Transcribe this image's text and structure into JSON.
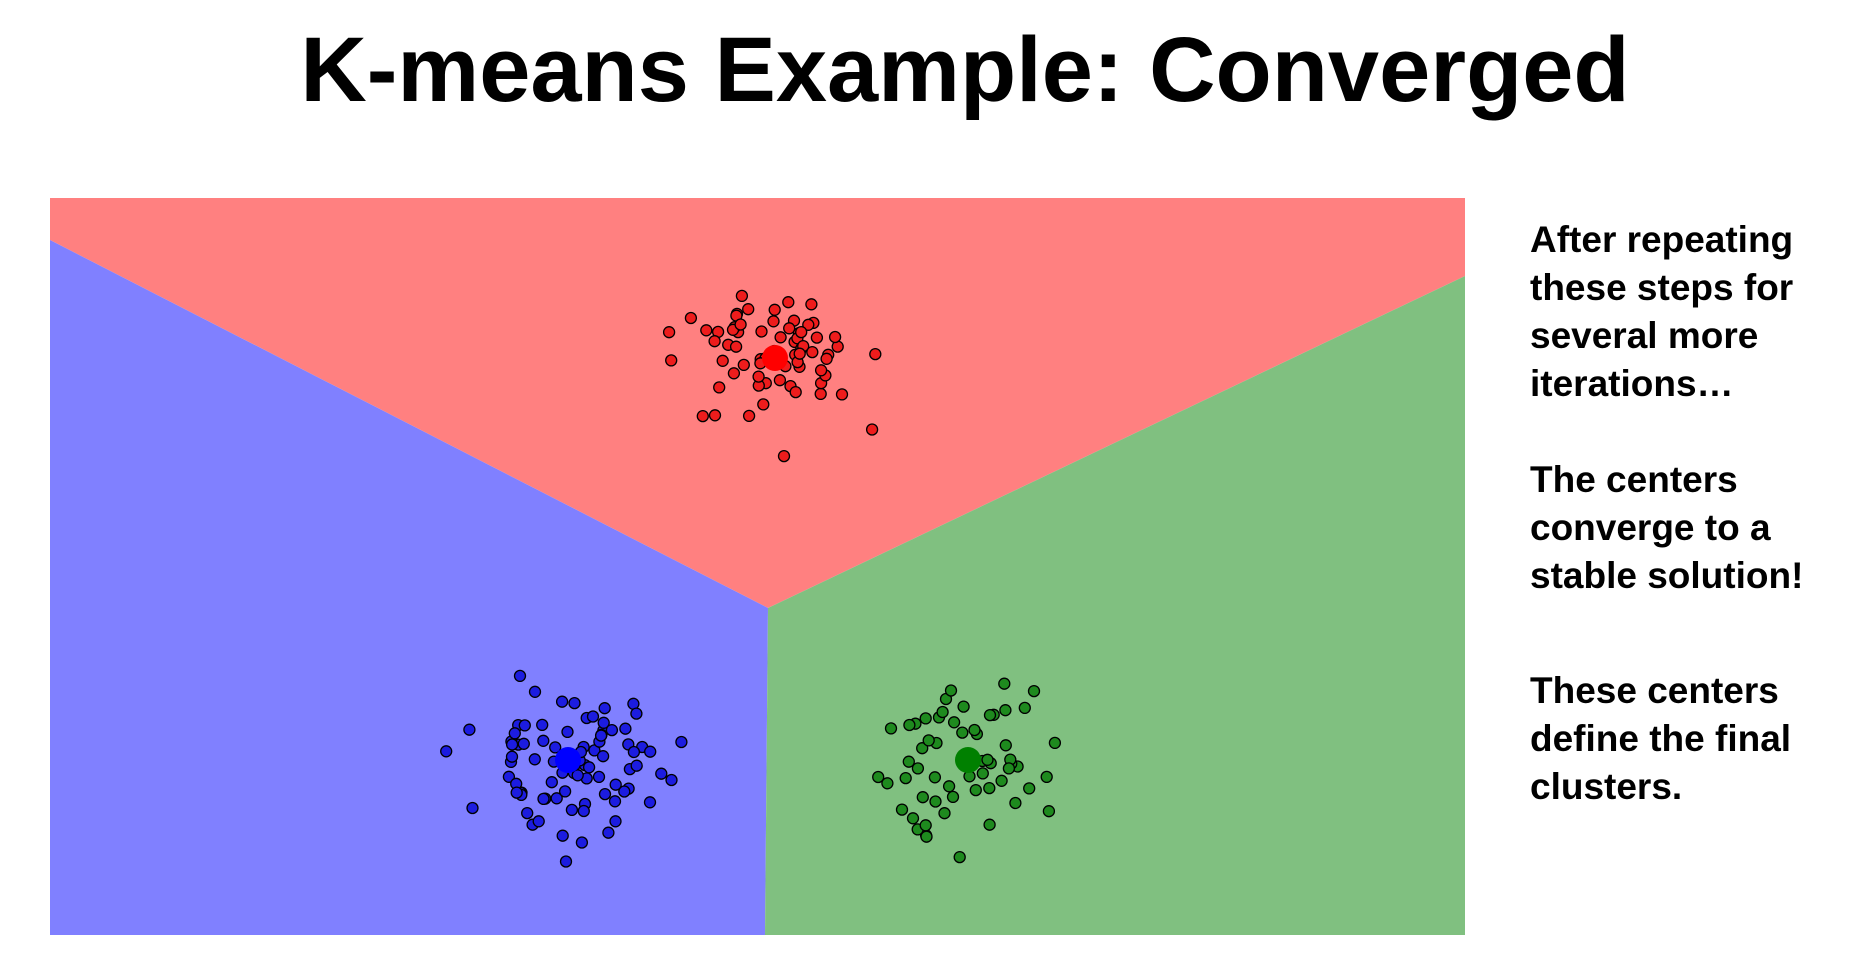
{
  "slide": {
    "title": "K-means Example: Converged"
  },
  "diagram": {
    "regions": [
      {
        "name": "red-region",
        "color": "#ff8080"
      },
      {
        "name": "blue-region",
        "color": "#8080ff"
      },
      {
        "name": "green-region",
        "color": "#80c080"
      }
    ],
    "clusters": [
      {
        "name": "red",
        "point_color": "#ee1c1c",
        "center_color": "#ff0000"
      },
      {
        "name": "blue",
        "point_color": "#1c1ce0",
        "center_color": "#0000ff"
      },
      {
        "name": "green",
        "point_color": "#1e8a1e",
        "center_color": "#008000"
      }
    ]
  },
  "notes": {
    "note1": [
      "After repeating",
      "these steps for",
      "several more",
      "iterations…"
    ],
    "note2": [
      "The centers",
      "converge to a",
      "stable solution!"
    ],
    "note3": [
      "These centers",
      "define the final",
      "clusters."
    ]
  }
}
